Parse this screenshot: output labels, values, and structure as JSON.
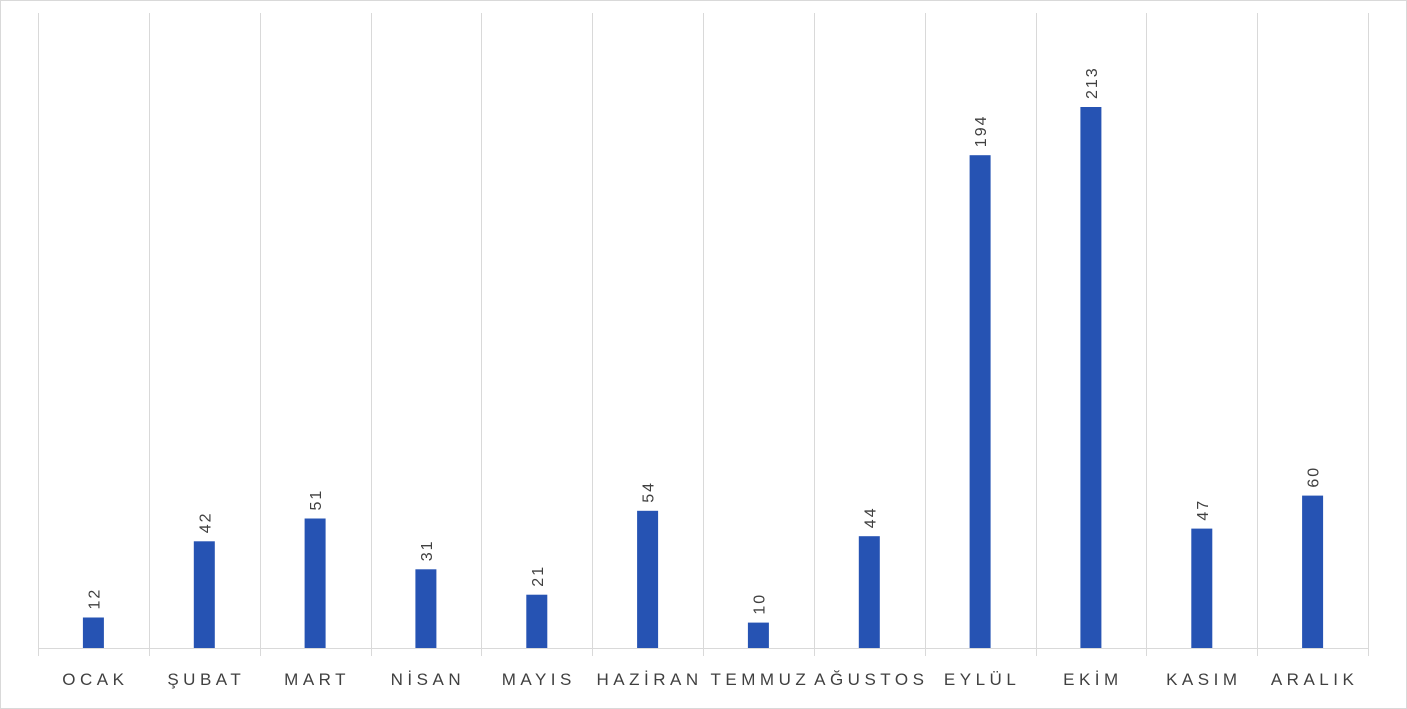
{
  "chart_data": {
    "type": "bar",
    "categories": [
      "OCAK",
      "ŞUBAT",
      "MART",
      "NİSAN",
      "MAYIS",
      "HAZİRAN",
      "TEMMUZ",
      "AĞUSTOS",
      "EYLÜL",
      "EKİM",
      "KASIM",
      "ARALIK"
    ],
    "values": [
      12,
      42,
      51,
      31,
      21,
      54,
      10,
      44,
      194,
      213,
      47,
      60
    ],
    "title": "",
    "xlabel": "",
    "ylabel": "",
    "ylim": [
      0,
      250
    ],
    "grid": "vertical category separators",
    "legend": "none",
    "bar_color": "#2653b3",
    "grid_color": "#d9d9d9",
    "label_color": "#404040"
  }
}
